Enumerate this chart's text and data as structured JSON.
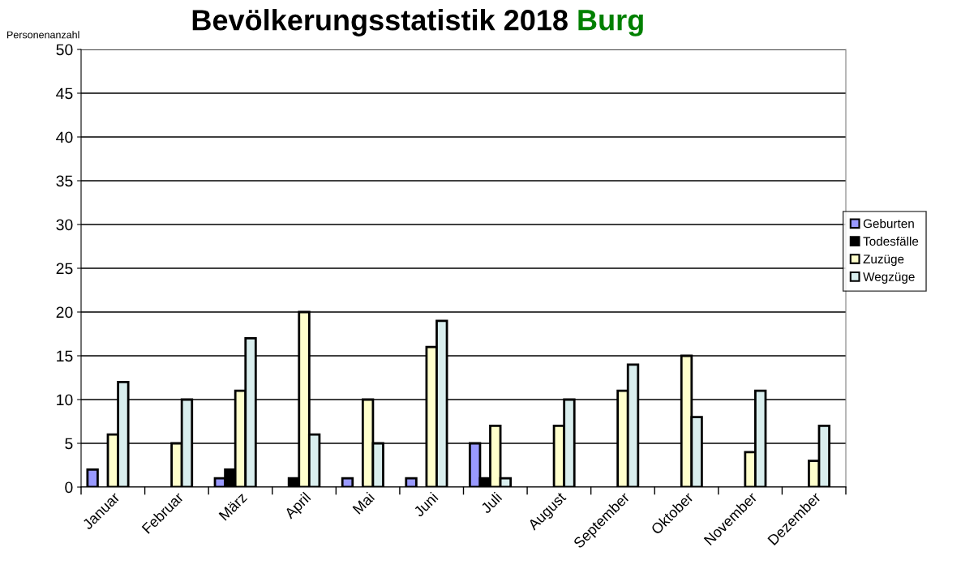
{
  "chart_data": {
    "type": "bar",
    "title": "Bevölkerungsstatistik 2018",
    "subtitle": "Burg",
    "ylabel": "Personenanzahl",
    "categories": [
      "Januar",
      "Februar",
      "März",
      "April",
      "Mai",
      "Juni",
      "Juli",
      "August",
      "September",
      "Oktober",
      "November",
      "Dezember"
    ],
    "series": [
      {
        "name": "Geburten",
        "color": "#9999ff",
        "values": [
          2,
          null,
          1,
          null,
          1,
          1,
          5,
          null,
          null,
          null,
          null,
          null
        ]
      },
      {
        "name": "Todesfälle",
        "color": "#000000",
        "values": [
          null,
          null,
          2,
          1,
          null,
          null,
          1,
          null,
          null,
          null,
          null,
          null
        ]
      },
      {
        "name": "Zuzüge",
        "color": "#ffffcc",
        "values": [
          6,
          5,
          11,
          20,
          10,
          16,
          7,
          7,
          11,
          15,
          4,
          3
        ]
      },
      {
        "name": "Wegzüge",
        "color": "#d9eeee",
        "values": [
          12,
          10,
          17,
          6,
          5,
          19,
          1,
          10,
          14,
          8,
          11,
          7
        ]
      }
    ],
    "ylim": [
      0,
      50
    ],
    "yticks": [
      0,
      5,
      10,
      15,
      20,
      25,
      30,
      35,
      40,
      45,
      50
    ],
    "grid": "y",
    "legend": "right"
  }
}
